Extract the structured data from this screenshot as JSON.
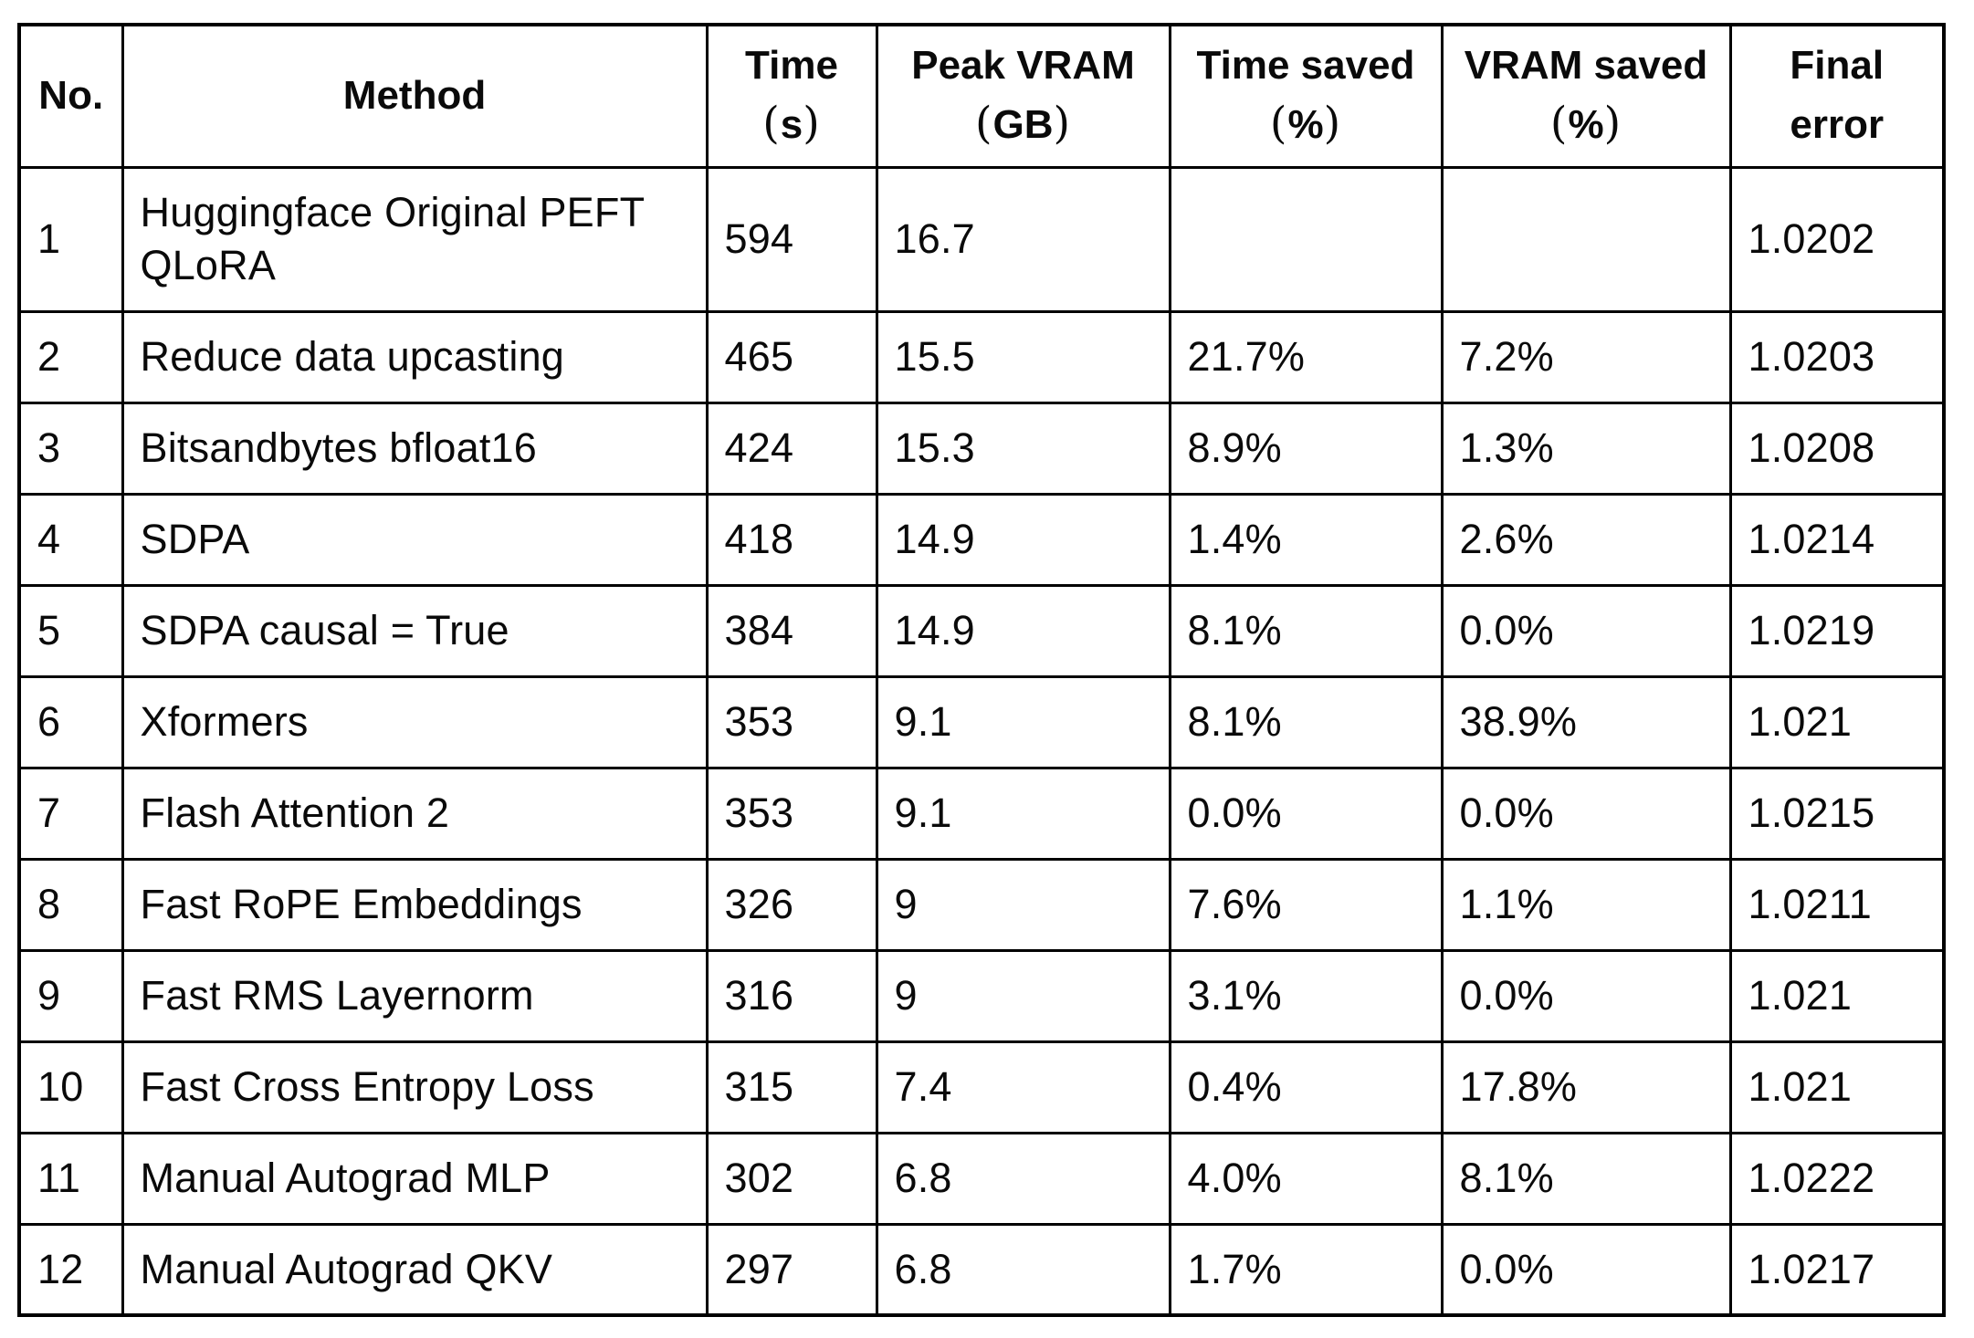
{
  "colors": {
    "background": "#ffffff",
    "border": "#000000",
    "text": "#0a0a0a"
  },
  "table": {
    "columns": [
      {
        "key": "no",
        "label": "No."
      },
      {
        "key": "method",
        "label": "Method"
      },
      {
        "key": "time",
        "label": "Time",
        "line2": {
          "open": "(",
          "text": "s",
          "close": ")"
        }
      },
      {
        "key": "peak_vram",
        "label": "Peak VRAM",
        "line2": {
          "open": "(",
          "text": "GB",
          "close": ")"
        }
      },
      {
        "key": "time_saved",
        "label": "Time saved",
        "line2": {
          "open": "(",
          "text": "%",
          "close": ")"
        }
      },
      {
        "key": "vram_saved",
        "label": "VRAM saved",
        "line2": {
          "open": "(",
          "text": "%",
          "close": ")"
        }
      },
      {
        "key": "final_error",
        "label": "Final",
        "line2": {
          "open": "",
          "text": "error",
          "close": ""
        }
      }
    ],
    "rows": [
      {
        "no": "1",
        "method": "Huggingface Original PEFT QLoRA",
        "time": "594",
        "peak_vram": "16.7",
        "time_saved": "",
        "vram_saved": "",
        "final_error": "1.0202"
      },
      {
        "no": "2",
        "method": "Reduce data upcasting",
        "time": "465",
        "peak_vram": "15.5",
        "time_saved": "21.7%",
        "vram_saved": "7.2%",
        "final_error": "1.0203"
      },
      {
        "no": "3",
        "method": "Bitsandbytes bfloat16",
        "time": "424",
        "peak_vram": "15.3",
        "time_saved": "8.9%",
        "vram_saved": "1.3%",
        "final_error": "1.0208"
      },
      {
        "no": "4",
        "method": "SDPA",
        "time": "418",
        "peak_vram": "14.9",
        "time_saved": "1.4%",
        "vram_saved": "2.6%",
        "final_error": "1.0214"
      },
      {
        "no": "5",
        "method": "SDPA causal = True",
        "time": "384",
        "peak_vram": "14.9",
        "time_saved": "8.1%",
        "vram_saved": "0.0%",
        "final_error": "1.0219"
      },
      {
        "no": "6",
        "method": "Xformers",
        "time": "353",
        "peak_vram": "9.1",
        "time_saved": "8.1%",
        "vram_saved": "38.9%",
        "final_error": "1.021"
      },
      {
        "no": "7",
        "method": "Flash Attention 2",
        "time": "353",
        "peak_vram": "9.1",
        "time_saved": "0.0%",
        "vram_saved": "0.0%",
        "final_error": "1.0215"
      },
      {
        "no": "8",
        "method": "Fast RoPE Embeddings",
        "time": "326",
        "peak_vram": "9",
        "time_saved": "7.6%",
        "vram_saved": "1.1%",
        "final_error": "1.0211"
      },
      {
        "no": "9",
        "method": "Fast RMS Layernorm",
        "time": "316",
        "peak_vram": "9",
        "time_saved": "3.1%",
        "vram_saved": "0.0%",
        "final_error": "1.021"
      },
      {
        "no": "10",
        "method": "Fast Cross Entropy Loss",
        "time": "315",
        "peak_vram": "7.4",
        "time_saved": "0.4%",
        "vram_saved": "17.8%",
        "final_error": "1.021"
      },
      {
        "no": "11",
        "method": "Manual Autograd MLP",
        "time": "302",
        "peak_vram": "6.8",
        "time_saved": "4.0%",
        "vram_saved": "8.1%",
        "final_error": "1.0222"
      },
      {
        "no": "12",
        "method": "Manual Autograd QKV",
        "time": "297",
        "peak_vram": "6.8",
        "time_saved": "1.7%",
        "vram_saved": "0.0%",
        "final_error": "1.0217"
      }
    ]
  },
  "chart_data": {
    "type": "table",
    "title": "",
    "columns": [
      "No.",
      "Method",
      "Time (s)",
      "Peak VRAM (GB)",
      "Time saved (%)",
      "VRAM saved (%)",
      "Final error"
    ],
    "rows": [
      [
        "1",
        "Huggingface Original PEFT QLoRA",
        "594",
        "16.7",
        "",
        "",
        "1.0202"
      ],
      [
        "2",
        "Reduce data upcasting",
        "465",
        "15.5",
        "21.7%",
        "7.2%",
        "1.0203"
      ],
      [
        "3",
        "Bitsandbytes bfloat16",
        "424",
        "15.3",
        "8.9%",
        "1.3%",
        "1.0208"
      ],
      [
        "4",
        "SDPA",
        "418",
        "14.9",
        "1.4%",
        "2.6%",
        "1.0214"
      ],
      [
        "5",
        "SDPA causal = True",
        "384",
        "14.9",
        "8.1%",
        "0.0%",
        "1.0219"
      ],
      [
        "6",
        "Xformers",
        "353",
        "9.1",
        "8.1%",
        "38.9%",
        "1.021"
      ],
      [
        "7",
        "Flash Attention 2",
        "353",
        "9.1",
        "0.0%",
        "0.0%",
        "1.0215"
      ],
      [
        "8",
        "Fast RoPE Embeddings",
        "326",
        "9",
        "7.6%",
        "1.1%",
        "1.0211"
      ],
      [
        "9",
        "Fast RMS Layernorm",
        "316",
        "9",
        "3.1%",
        "0.0%",
        "1.021"
      ],
      [
        "10",
        "Fast Cross Entropy Loss",
        "315",
        "7.4",
        "0.4%",
        "17.8%",
        "1.021"
      ],
      [
        "11",
        "Manual Autograd MLP",
        "302",
        "6.8",
        "4.0%",
        "8.1%",
        "1.0222"
      ],
      [
        "12",
        "Manual Autograd QKV",
        "297",
        "6.8",
        "1.7%",
        "0.0%",
        "1.0217"
      ]
    ]
  }
}
